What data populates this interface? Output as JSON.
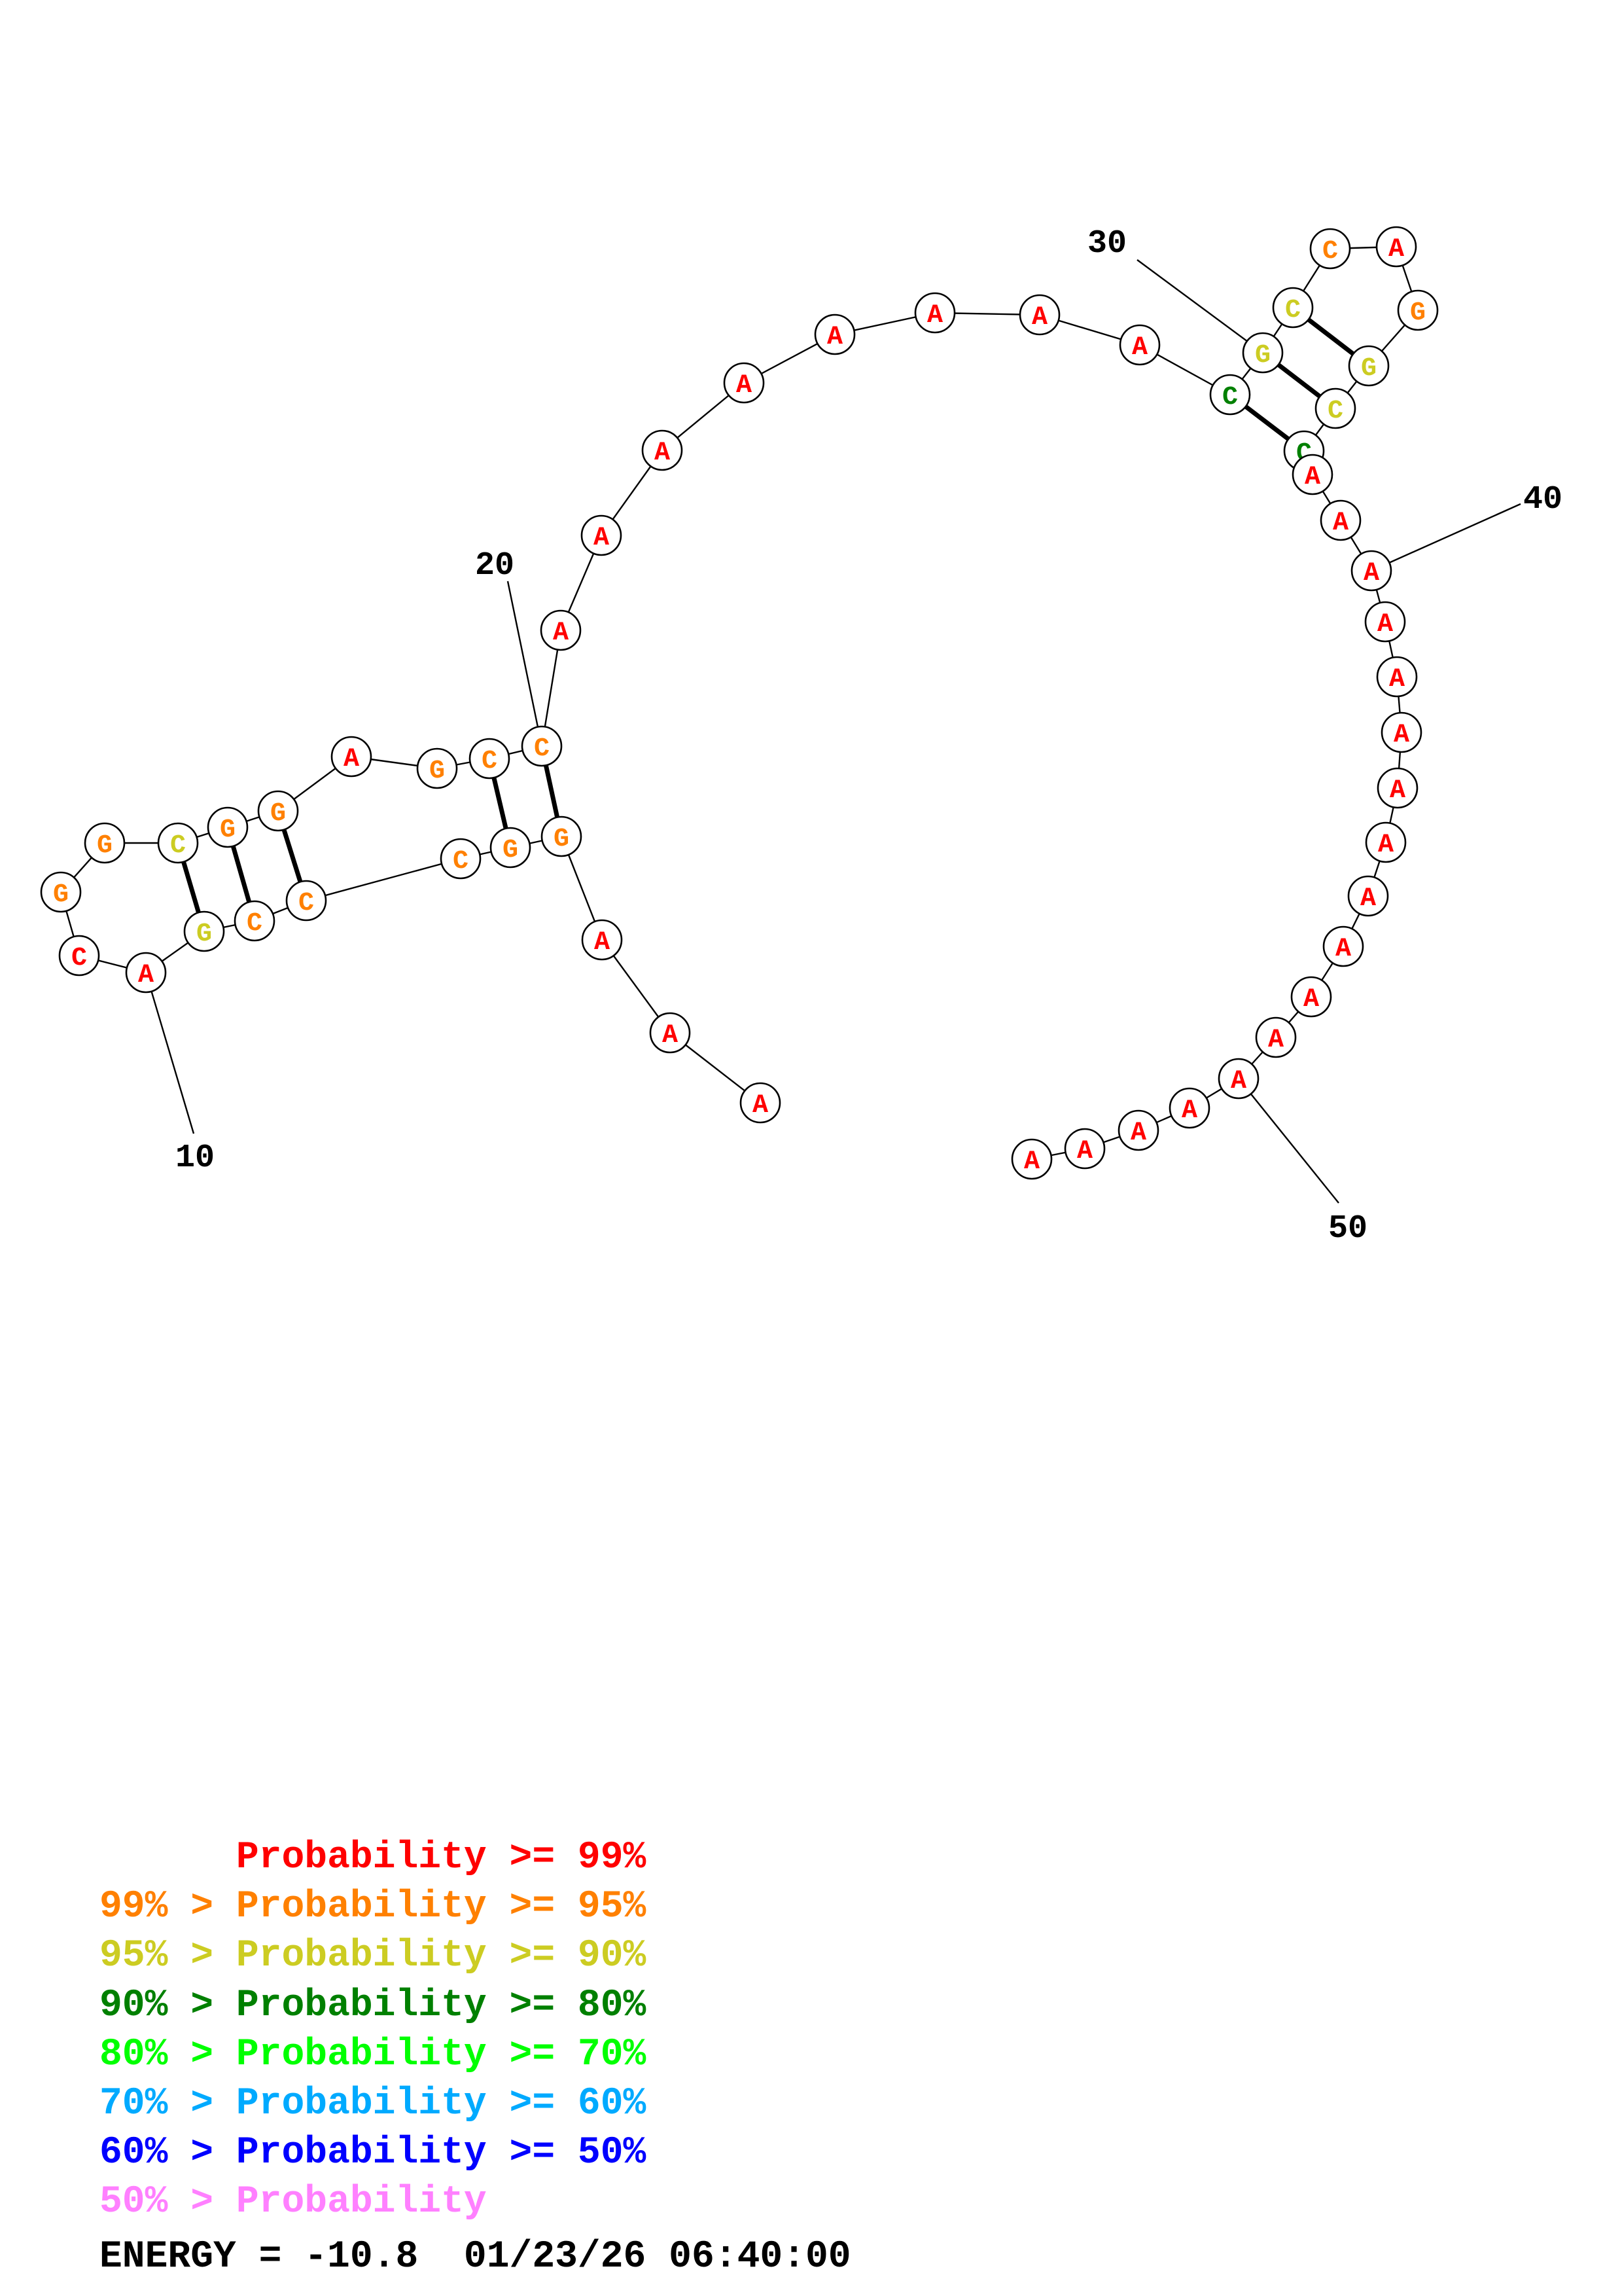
{
  "structure": {
    "nucleotides": [
      {
        "i": 1,
        "base": "A",
        "color": "#ff0000"
      },
      {
        "i": 2,
        "base": "A",
        "color": "#ff0000"
      },
      {
        "i": 3,
        "base": "A",
        "color": "#ff0000"
      },
      {
        "i": 4,
        "base": "G",
        "color": "#ff8000"
      },
      {
        "i": 5,
        "base": "G",
        "color": "#ff8000"
      },
      {
        "i": 6,
        "base": "C",
        "color": "#ff8000"
      },
      {
        "i": 7,
        "base": "C",
        "color": "#ff8000"
      },
      {
        "i": 8,
        "base": "C",
        "color": "#ff8000"
      },
      {
        "i": 9,
        "base": "G",
        "color": "#cccc22"
      },
      {
        "i": 10,
        "base": "A",
        "color": "#ff0000"
      },
      {
        "i": 11,
        "base": "C",
        "color": "#ff0000"
      },
      {
        "i": 12,
        "base": "G",
        "color": "#ff8000"
      },
      {
        "i": 13,
        "base": "G",
        "color": "#ff8000"
      },
      {
        "i": 14,
        "base": "C",
        "color": "#cccc22"
      },
      {
        "i": 15,
        "base": "G",
        "color": "#ff8000"
      },
      {
        "i": 16,
        "base": "G",
        "color": "#ff8000"
      },
      {
        "i": 17,
        "base": "A",
        "color": "#ff0000"
      },
      {
        "i": 18,
        "base": "G",
        "color": "#ff8000"
      },
      {
        "i": 19,
        "base": "C",
        "color": "#ff8000"
      },
      {
        "i": 20,
        "base": "C",
        "color": "#ff8000"
      },
      {
        "i": 21,
        "base": "A",
        "color": "#ff0000"
      },
      {
        "i": 22,
        "base": "A",
        "color": "#ff0000"
      },
      {
        "i": 23,
        "base": "A",
        "color": "#ff0000"
      },
      {
        "i": 24,
        "base": "A",
        "color": "#ff0000"
      },
      {
        "i": 25,
        "base": "A",
        "color": "#ff0000"
      },
      {
        "i": 26,
        "base": "A",
        "color": "#ff0000"
      },
      {
        "i": 27,
        "base": "A",
        "color": "#ff0000"
      },
      {
        "i": 28,
        "base": "A",
        "color": "#ff0000"
      },
      {
        "i": 29,
        "base": "C",
        "color": "#008000"
      },
      {
        "i": 30,
        "base": "G",
        "color": "#cccc22"
      },
      {
        "i": 31,
        "base": "C",
        "color": "#cccc22"
      },
      {
        "i": 32,
        "base": "C",
        "color": "#ff8000"
      },
      {
        "i": 33,
        "base": "A",
        "color": "#ff0000"
      },
      {
        "i": 34,
        "base": "G",
        "color": "#ff8000"
      },
      {
        "i": 35,
        "base": "G",
        "color": "#cccc22"
      },
      {
        "i": 36,
        "base": "C",
        "color": "#cccc22"
      },
      {
        "i": 37,
        "base": "C",
        "color": "#008000"
      },
      {
        "i": 38,
        "base": "A",
        "color": "#ff0000"
      },
      {
        "i": 39,
        "base": "A",
        "color": "#ff0000"
      },
      {
        "i": 40,
        "base": "A",
        "color": "#ff0000"
      },
      {
        "i": 41,
        "base": "A",
        "color": "#ff0000"
      },
      {
        "i": 42,
        "base": "A",
        "color": "#ff0000"
      },
      {
        "i": 43,
        "base": "A",
        "color": "#ff0000"
      },
      {
        "i": 44,
        "base": "A",
        "color": "#ff0000"
      },
      {
        "i": 45,
        "base": "A",
        "color": "#ff0000"
      },
      {
        "i": 46,
        "base": "A",
        "color": "#ff0000"
      },
      {
        "i": 47,
        "base": "A",
        "color": "#ff0000"
      },
      {
        "i": 48,
        "base": "A",
        "color": "#ff0000"
      },
      {
        "i": 49,
        "base": "A",
        "color": "#ff0000"
      },
      {
        "i": 50,
        "base": "A",
        "color": "#ff0000"
      },
      {
        "i": 51,
        "base": "A",
        "color": "#ff0000"
      },
      {
        "i": 52,
        "base": "A",
        "color": "#ff0000"
      },
      {
        "i": 53,
        "base": "A",
        "color": "#ff0000"
      },
      {
        "i": 54,
        "base": "A",
        "color": "#ff0000"
      }
    ],
    "pairs": [
      [
        4,
        20
      ],
      [
        5,
        19
      ],
      [
        7,
        16
      ],
      [
        8,
        15
      ],
      [
        9,
        14
      ],
      [
        29,
        37
      ],
      [
        30,
        36
      ],
      [
        31,
        35
      ]
    ],
    "position_labels": [
      "10",
      "20",
      "30",
      "40",
      "50"
    ]
  },
  "legend": [
    {
      "prefix": "      ",
      "text": "Probability >= 99%",
      "color": "#ff0000"
    },
    {
      "prefix": "99% > ",
      "text": "Probability >= 95%",
      "color": "#ff8000"
    },
    {
      "prefix": "95% > ",
      "text": "Probability >= 90%",
      "color": "#cccc22"
    },
    {
      "prefix": "90% > ",
      "text": "Probability >= 80%",
      "color": "#008000"
    },
    {
      "prefix": "80% > ",
      "text": "Probability >= 70%",
      "color": "#00ff00"
    },
    {
      "prefix": "70% > ",
      "text": "Probability >= 60%",
      "color": "#00aaff"
    },
    {
      "prefix": "60% > ",
      "text": "Probability >= 50%",
      "color": "#0000ff"
    },
    {
      "prefix": "50% > ",
      "text": "Probability",
      "color": "#ff80ff"
    }
  ],
  "footer": {
    "energy": "ENERGY = -10.8",
    "timestamp": "01/23/26 06:40:00"
  }
}
